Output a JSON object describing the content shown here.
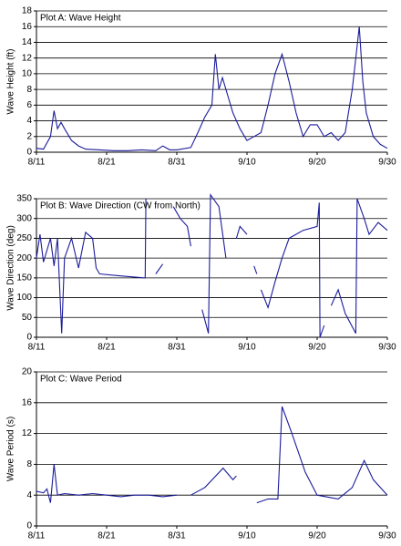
{
  "chart_data": [
    {
      "type": "line",
      "title": "Plot A: Wave Height",
      "y_label": "Wave Height (ft)",
      "color": "#1c1c9c",
      "grid": true,
      "x": [
        0,
        1,
        2,
        2.5,
        3,
        3.5,
        4,
        5,
        6,
        7,
        9,
        11,
        13,
        15,
        17,
        18,
        19,
        20,
        22,
        23,
        24,
        25,
        25.5,
        26,
        26.5,
        27,
        28,
        29,
        30,
        31,
        32,
        33,
        34,
        35,
        36,
        37,
        38,
        39,
        40,
        41,
        42,
        43,
        44,
        45,
        45.5,
        46,
        46.5,
        47,
        48,
        49,
        50
      ],
      "values": [
        0.5,
        0.4,
        2,
        5.3,
        3,
        3.8,
        3,
        1.5,
        0.8,
        0.4,
        0.3,
        0.2,
        0.2,
        0.3,
        0.2,
        0.8,
        0.3,
        0.3,
        0.6,
        2.5,
        4.5,
        6,
        12.5,
        8,
        9.5,
        8,
        5,
        3,
        1.5,
        2,
        2.5,
        6,
        10,
        12.5,
        9,
        5,
        2,
        3.5,
        3.5,
        2,
        2.5,
        1.5,
        2.5,
        8,
        12,
        16,
        9,
        5,
        2,
        1,
        0.5
      ],
      "xlim": [
        0,
        50
      ],
      "xticks": [
        {
          "value": 0,
          "label": "8/11"
        },
        {
          "value": 10,
          "label": "8/21"
        },
        {
          "value": 20,
          "label": "8/31"
        },
        {
          "value": 30,
          "label": "9/10"
        },
        {
          "value": 40,
          "label": "9/20"
        },
        {
          "value": 50,
          "label": "9/30"
        }
      ],
      "ylim": [
        0,
        18
      ],
      "yticks": [
        0,
        2,
        4,
        6,
        8,
        10,
        12,
        14,
        16,
        18
      ]
    },
    {
      "type": "line",
      "title": "Plot B: Wave Direction (CW from North)",
      "y_label": "Wave Direction (deg)",
      "color": "#1c1c9c",
      "grid": true,
      "x": [
        0,
        0.5,
        1,
        2,
        2.5,
        3,
        3.6,
        4,
        5,
        6,
        7,
        8,
        8.5,
        9,
        12,
        15.5,
        15.6,
        16,
        17,
        18,
        18.5,
        19.5,
        20.5,
        21.5,
        22,
        22.5,
        23.6,
        24.5,
        24.8,
        26,
        27,
        28,
        28.5,
        29,
        30,
        30.5,
        31,
        31.4,
        31.8,
        32,
        33,
        34,
        35,
        36,
        38,
        40,
        40.3,
        40.4,
        41,
        41.5,
        42,
        43,
        44,
        45.5,
        45.7,
        46.7,
        47.4,
        48.7,
        50
      ],
      "values": [
        200,
        260,
        190,
        250,
        180,
        250,
        10,
        200,
        250,
        175,
        265,
        250,
        175,
        160,
        155,
        150,
        350,
        null,
        160,
        185,
        null,
        330,
        300,
        280,
        230,
        null,
        70,
        10,
        360,
        330,
        200,
        null,
        250,
        280,
        260,
        null,
        180,
        160,
        null,
        120,
        75,
        140,
        200,
        250,
        270,
        280,
        340,
        0,
        30,
        null,
        80,
        120,
        60,
        10,
        350,
        300,
        260,
        290,
        270
      ],
      "xlim": [
        0,
        50
      ],
      "xticks": [
        {
          "value": 0,
          "label": "8/11"
        },
        {
          "value": 10,
          "label": "8/21"
        },
        {
          "value": 20,
          "label": "8/31"
        },
        {
          "value": 30,
          "label": "9/10"
        },
        {
          "value": 40,
          "label": "9/20"
        },
        {
          "value": 50,
          "label": "9/30"
        }
      ],
      "ylim": [
        0,
        350
      ],
      "yticks": [
        0,
        50,
        100,
        150,
        200,
        250,
        300,
        350
      ]
    },
    {
      "type": "line",
      "title": "Plot C: Wave Period",
      "y_label": "Wave Period (s)",
      "color": "#1c1c9c",
      "grid": true,
      "x": [
        0,
        1,
        1.5,
        2,
        2.5,
        3,
        4,
        6,
        8,
        10,
        12,
        14,
        16,
        18,
        20,
        21,
        22,
        24,
        26.6,
        28,
        28.5,
        29.5,
        31.4,
        33,
        34.4,
        35,
        36.4,
        38.3,
        40,
        43,
        45,
        46.7,
        48,
        50
      ],
      "values": [
        4.5,
        4.3,
        4.8,
        3,
        8,
        4,
        4.2,
        4,
        4.2,
        4,
        3.8,
        4,
        4,
        3.8,
        4,
        null,
        4,
        5,
        7.5,
        6,
        6.5,
        null,
        3,
        3.5,
        3.5,
        15.5,
        12,
        7,
        4,
        3.5,
        5,
        8.5,
        6,
        4
      ],
      "xlim": [
        0,
        50
      ],
      "xticks": [
        {
          "value": 0,
          "label": "8/11"
        },
        {
          "value": 10,
          "label": "8/21"
        },
        {
          "value": 20,
          "label": "8/31"
        },
        {
          "value": 30,
          "label": "9/10"
        },
        {
          "value": 40,
          "label": "9/20"
        },
        {
          "value": 50,
          "label": "9/30"
        }
      ],
      "ylim": [
        0,
        20
      ],
      "yticks": [
        0,
        4,
        8,
        12,
        16,
        20
      ]
    }
  ]
}
